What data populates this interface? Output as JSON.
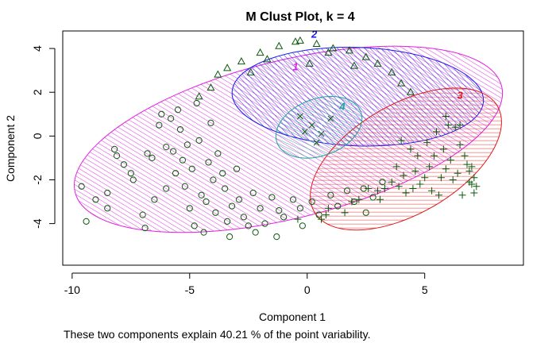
{
  "chart_data": {
    "type": "scatter",
    "title": "M Clust Plot, k = 4",
    "xlabel": "Component 1",
    "ylabel": "Component 2",
    "footnote": "These two components explain 40.21 % of the point variability.",
    "xlim": [
      -10.4,
      9.2
    ],
    "ylim": [
      -5.9,
      4.8
    ],
    "xticks": [
      -10,
      -5,
      0,
      5
    ],
    "yticks": [
      -4,
      -2,
      0,
      2,
      4
    ],
    "point_color": "#0b5a0b",
    "clusters": [
      {
        "label": "1",
        "color": "#e020e0",
        "ellipse": {
          "cx": -0.8,
          "cy": -0.15,
          "rx": 9.35,
          "ry": 3.6,
          "angle_deg": 14
        },
        "hatch_angle_deg": 45,
        "marker": "circle",
        "label_pos": [
          -0.5,
          3.0
        ]
      },
      {
        "label": "2",
        "color": "#1a1aee",
        "ellipse": {
          "cx": 2.15,
          "cy": 1.8,
          "rx": 5.35,
          "ry": 2.25,
          "angle_deg": -2
        },
        "hatch_angle_deg": 45,
        "marker": "triangle",
        "label_pos": [
          0.3,
          4.5
        ]
      },
      {
        "label": "3",
        "color": "#e01818",
        "ellipse": {
          "cx": 4.2,
          "cy": -1.05,
          "rx": 4.5,
          "ry": 2.5,
          "angle_deg": 30
        },
        "hatch_angle_deg": 60,
        "marker": "plus",
        "label_pos": [
          6.5,
          1.7
        ]
      },
      {
        "label": "4",
        "color": "#20a0a0",
        "ellipse": {
          "cx": 0.5,
          "cy": 0.4,
          "rx": 1.9,
          "ry": 1.3,
          "angle_deg": 20
        },
        "hatch_angle_deg": 45,
        "marker": "x",
        "label_pos": [
          1.5,
          1.2
        ]
      }
    ],
    "points": [
      {
        "cluster": "1",
        "marker": "circle",
        "xy": [
          [
            -9.6,
            -2.3
          ],
          [
            -9.4,
            -3.9
          ],
          [
            -8.5,
            -2.6
          ],
          [
            -8.5,
            -3.3
          ],
          [
            -8.2,
            -0.6
          ],
          [
            -8.1,
            -0.9
          ],
          [
            -7.5,
            -1.7
          ],
          [
            -7.4,
            -2.0
          ],
          [
            -7.0,
            -3.6
          ],
          [
            -6.9,
            -4.2
          ],
          [
            -6.8,
            -0.8
          ],
          [
            -6.6,
            -1.0
          ],
          [
            -6.3,
            0.5
          ],
          [
            -6.2,
            1.0
          ],
          [
            -6.0,
            -2.4
          ],
          [
            -6.0,
            -0.5
          ],
          [
            -5.8,
            0.8
          ],
          [
            -5.7,
            -0.7
          ],
          [
            -5.6,
            -1.7
          ],
          [
            -5.5,
            1.2
          ],
          [
            -5.4,
            0.3
          ],
          [
            -5.3,
            -1.1
          ],
          [
            -5.2,
            -2.3
          ],
          [
            -5.1,
            -0.4
          ],
          [
            -5.0,
            -3.3
          ],
          [
            -4.9,
            -1.5
          ],
          [
            -4.8,
            -4.1
          ],
          [
            -4.7,
            1.5
          ],
          [
            -4.6,
            -0.2
          ],
          [
            -4.5,
            -2.7
          ],
          [
            -4.3,
            -3.0
          ],
          [
            -4.2,
            -1.2
          ],
          [
            -4.1,
            0.6
          ],
          [
            -4.0,
            -2.0
          ],
          [
            -3.9,
            -3.5
          ],
          [
            -3.8,
            -0.8
          ],
          [
            -3.6,
            -1.7
          ],
          [
            -3.5,
            -2.4
          ],
          [
            -3.4,
            -3.9
          ],
          [
            -3.2,
            -3.2
          ],
          [
            -3.0,
            -1.5
          ],
          [
            -2.9,
            -2.9
          ],
          [
            -2.7,
            -3.7
          ],
          [
            -2.5,
            -4.1
          ],
          [
            -2.3,
            -2.6
          ],
          [
            -2.0,
            -3.3
          ],
          [
            -1.8,
            -4.0
          ],
          [
            -1.5,
            -2.8
          ],
          [
            -1.2,
            -3.4
          ],
          [
            -1.0,
            -3.7
          ],
          [
            -0.6,
            -2.9
          ],
          [
            -0.3,
            -3.3
          ],
          [
            0.2,
            -3.0
          ],
          [
            0.5,
            -3.6
          ],
          [
            1.0,
            -2.7
          ],
          [
            1.3,
            -3.2
          ],
          [
            1.7,
            -2.5
          ],
          [
            2.0,
            -3.0
          ],
          [
            2.4,
            -2.4
          ],
          [
            2.8,
            -2.8
          ],
          [
            3.2,
            -2.1
          ],
          [
            -9.0,
            -2.9
          ],
          [
            -7.8,
            -1.3
          ],
          [
            -6.5,
            -2.9
          ],
          [
            -4.4,
            -4.4
          ],
          [
            -3.3,
            -4.6
          ],
          [
            -2.2,
            -4.4
          ],
          [
            -1.3,
            -4.6
          ],
          [
            -0.2,
            -4.1
          ],
          [
            2.5,
            -3.5
          ]
        ]
      },
      {
        "cluster": "2",
        "marker": "triangle",
        "xy": [
          [
            -0.5,
            4.3
          ],
          [
            -0.3,
            4.35
          ],
          [
            -1.2,
            4.1
          ],
          [
            0.4,
            4.2
          ],
          [
            1.1,
            4.0
          ],
          [
            -2.0,
            3.8
          ],
          [
            1.8,
            3.9
          ],
          [
            -2.8,
            3.4
          ],
          [
            2.5,
            3.6
          ],
          [
            -3.4,
            3.1
          ],
          [
            3.0,
            3.3
          ],
          [
            -4.1,
            2.2
          ],
          [
            3.6,
            2.9
          ],
          [
            -3.8,
            2.8
          ],
          [
            4.0,
            2.4
          ],
          [
            -1.7,
            3.5
          ],
          [
            0.9,
            3.8
          ],
          [
            -4.6,
            1.8
          ],
          [
            4.4,
            2.0
          ],
          [
            2.0,
            3.2
          ],
          [
            -2.4,
            2.9
          ],
          [
            0.1,
            3.3
          ]
        ]
      },
      {
        "cluster": "3",
        "marker": "plus",
        "xy": [
          [
            7.0,
            -1.4
          ],
          [
            7.1,
            -1.9
          ],
          [
            6.9,
            -2.1
          ],
          [
            7.2,
            -2.3
          ],
          [
            6.8,
            -1.3
          ],
          [
            6.5,
            -0.4
          ],
          [
            6.3,
            0.4
          ],
          [
            6.0,
            0.5
          ],
          [
            5.8,
            -0.6
          ],
          [
            5.5,
            0.2
          ],
          [
            6.1,
            -1.1
          ],
          [
            5.9,
            -1.5
          ],
          [
            6.4,
            -1.7
          ],
          [
            5.7,
            -1.9
          ],
          [
            5.4,
            -0.9
          ],
          [
            5.2,
            -1.4
          ],
          [
            5.0,
            -1.9
          ],
          [
            4.8,
            -2.2
          ],
          [
            4.5,
            -2.4
          ],
          [
            4.2,
            -2.6
          ],
          [
            3.9,
            -2.3
          ],
          [
            3.6,
            -2.1
          ],
          [
            3.3,
            -2.4
          ],
          [
            3.0,
            -2.5
          ],
          [
            4.6,
            -1.6
          ],
          [
            4.1,
            -1.8
          ],
          [
            5.3,
            -2.5
          ],
          [
            6.6,
            -2.7
          ],
          [
            7.1,
            -2.6
          ],
          [
            6.2,
            -2.0
          ],
          [
            4.4,
            -0.6
          ],
          [
            5.1,
            -0.3
          ],
          [
            3.8,
            -1.4
          ],
          [
            6.7,
            -0.9
          ],
          [
            5.6,
            -2.7
          ],
          [
            2.6,
            -2.4
          ],
          [
            1.9,
            -3.0
          ],
          [
            1.6,
            -3.5
          ],
          [
            0.9,
            -3.3
          ],
          [
            0.6,
            -3.8
          ],
          [
            0.8,
            -3.6
          ],
          [
            -0.4,
            -3.8
          ],
          [
            2.2,
            -2.9
          ],
          [
            3.1,
            -2.9
          ],
          [
            5.9,
            0.9
          ],
          [
            6.5,
            0.5
          ],
          [
            4.0,
            -0.2
          ],
          [
            4.7,
            -0.9
          ],
          [
            6.9,
            -1.6
          ],
          [
            7.0,
            -2.2
          ]
        ]
      },
      {
        "cluster": "4",
        "marker": "x",
        "xy": [
          [
            0.2,
            0.5
          ],
          [
            0.6,
            0.1
          ],
          [
            -0.3,
            0.9
          ],
          [
            1.0,
            0.8
          ],
          [
            0.4,
            -0.3
          ],
          [
            -0.1,
            0.2
          ]
        ]
      }
    ]
  }
}
